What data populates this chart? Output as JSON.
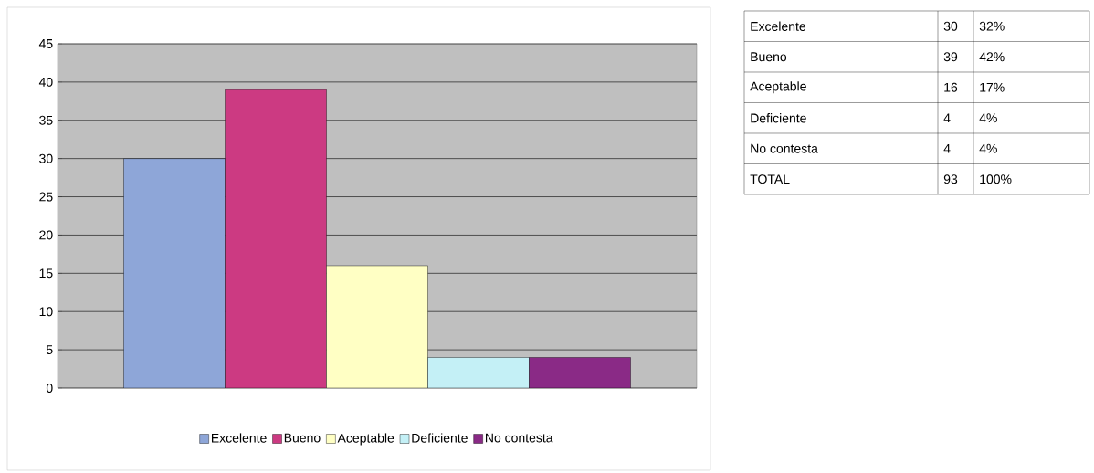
{
  "chart_data": {
    "type": "bar",
    "categories": [
      null
    ],
    "series": [
      {
        "name": "Excelente",
        "color": "#8ea6d8",
        "values": [
          30
        ]
      },
      {
        "name": "Bueno",
        "color": "#cc3a82",
        "values": [
          39
        ]
      },
      {
        "name": "Aceptable",
        "color": "#ffffc4",
        "values": [
          16
        ]
      },
      {
        "name": "Deficiente",
        "color": "#c4f0f6",
        "values": [
          4
        ]
      },
      {
        "name": "No contesta",
        "color": "#8a2a86",
        "values": [
          4
        ]
      }
    ],
    "ylim": [
      0,
      45
    ],
    "yticks": [
      0,
      5,
      10,
      15,
      20,
      25,
      30,
      35,
      40,
      45
    ],
    "grid": "y",
    "legend": "bottom",
    "annotations": [
      "30",
      "32%",
      "39",
      "42%",
      "16",
      "17%",
      "4",
      "4%",
      "4",
      "4%",
      "TOTAL",
      "93",
      "100%"
    ]
  }
}
